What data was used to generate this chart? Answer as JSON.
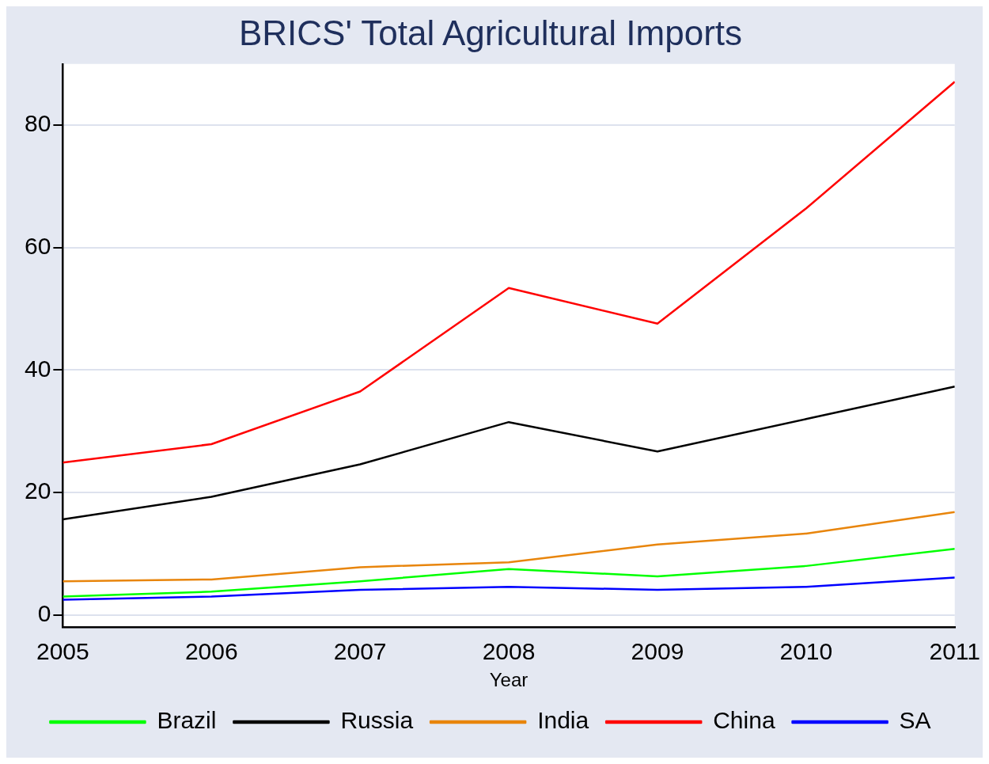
{
  "chart_data": {
    "type": "line",
    "title": "BRICS' Total Agricultural Imports",
    "xlabel": "Year",
    "x": [
      2005,
      2006,
      2007,
      2008,
      2009,
      2010,
      2011
    ],
    "xlim": [
      2005,
      2011
    ],
    "xticks": [
      2005,
      2006,
      2007,
      2008,
      2009,
      2010,
      2011
    ],
    "ylim": [
      -2,
      90
    ],
    "yticks": [
      0,
      20,
      40,
      60,
      80
    ],
    "grid": "y",
    "legend": "bottom",
    "marker": "none",
    "line_style": "solid",
    "series": [
      {
        "name": "Brazil",
        "color": "#00ff00",
        "values": [
          3.0,
          3.8,
          5.5,
          7.5,
          6.3,
          8.0,
          10.8
        ]
      },
      {
        "name": "Russia",
        "color": "#000000",
        "values": [
          15.6,
          19.3,
          24.6,
          31.5,
          26.7,
          32.0,
          37.3
        ]
      },
      {
        "name": "India",
        "color": "#e8850c",
        "values": [
          5.5,
          5.8,
          7.8,
          8.6,
          11.5,
          13.3,
          16.8
        ]
      },
      {
        "name": "China",
        "color": "#ff0000",
        "values": [
          24.9,
          27.9,
          36.5,
          53.4,
          47.6,
          66.4,
          87.1
        ]
      },
      {
        "name": "SA",
        "color": "#0000ff",
        "values": [
          2.5,
          3.0,
          4.1,
          4.6,
          4.1,
          4.6,
          6.1
        ]
      }
    ]
  }
}
